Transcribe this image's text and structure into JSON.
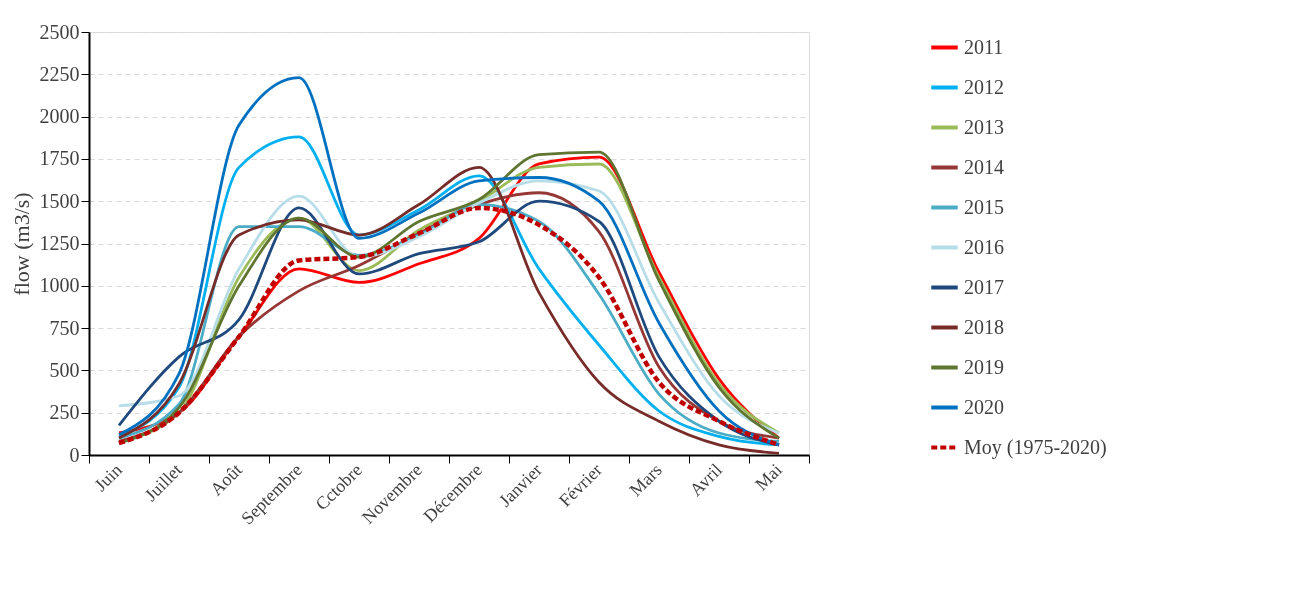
{
  "chart_data": {
    "type": "line",
    "ylabel": "flow (m3/s)",
    "categories": [
      "Juin",
      "Juillet",
      "Août",
      "Septembre",
      "Cctobre",
      "Novembre",
      "Décembre",
      "Janvier",
      "Février",
      "Mars",
      "Avril",
      "Mai"
    ],
    "ylim": [
      0,
      2500
    ],
    "yticks": [
      0,
      250,
      500,
      750,
      1000,
      1250,
      1500,
      1750,
      2000,
      2250,
      2500
    ],
    "grid": "y",
    "legend": "right",
    "line_style": "solid",
    "marker": "none",
    "series": [
      {
        "name": "2011",
        "color": "#ff0000",
        "values": [
          130,
          250,
          700,
          1100,
          1020,
          1130,
          1280,
          1720,
          1760,
          1080,
          450,
          100
        ]
      },
      {
        "name": "2012",
        "color": "#00b0f0",
        "values": [
          110,
          400,
          1700,
          1880,
          1300,
          1450,
          1650,
          1100,
          650,
          260,
          110,
          60
        ]
      },
      {
        "name": "2013",
        "color": "#9bbb59",
        "values": [
          80,
          250,
          1050,
          1400,
          1090,
          1330,
          1500,
          1700,
          1720,
          1050,
          420,
          130
        ]
      },
      {
        "name": "2014",
        "color": "#953735",
        "values": [
          80,
          250,
          700,
          970,
          1120,
          1310,
          1480,
          1550,
          1320,
          520,
          200,
          100
        ]
      },
      {
        "name": "2015",
        "color": "#4bacc6",
        "values": [
          100,
          300,
          1350,
          1350,
          1180,
          1300,
          1480,
          1380,
          950,
          360,
          130,
          80
        ]
      },
      {
        "name": "2016",
        "color": "#b7dde8",
        "values": [
          290,
          350,
          1100,
          1530,
          1170,
          1290,
          1490,
          1620,
          1560,
          900,
          350,
          130
        ]
      },
      {
        "name": "2017",
        "color": "#1f497d",
        "values": [
          175,
          580,
          800,
          1460,
          1070,
          1190,
          1260,
          1500,
          1380,
          580,
          200,
          60
        ]
      },
      {
        "name": "2018",
        "color": "#772c2a",
        "values": [
          100,
          420,
          1300,
          1390,
          1300,
          1480,
          1700,
          960,
          430,
          200,
          60,
          10
        ]
      },
      {
        "name": "2019",
        "color": "#5f7530",
        "values": [
          70,
          280,
          1000,
          1400,
          1170,
          1380,
          1510,
          1775,
          1790,
          1030,
          400,
          100
        ]
      },
      {
        "name": "2020",
        "color": "#0070c0",
        "values": [
          120,
          480,
          1950,
          2230,
          1280,
          1430,
          1620,
          1640,
          1500,
          780,
          260,
          60
        ]
      },
      {
        "name": "Moy (1975-2020)",
        "color": "#c00000",
        "line_style": "dashed",
        "values": [
          70,
          250,
          700,
          1150,
          1170,
          1310,
          1460,
          1360,
          1050,
          430,
          200,
          60
        ]
      }
    ]
  }
}
